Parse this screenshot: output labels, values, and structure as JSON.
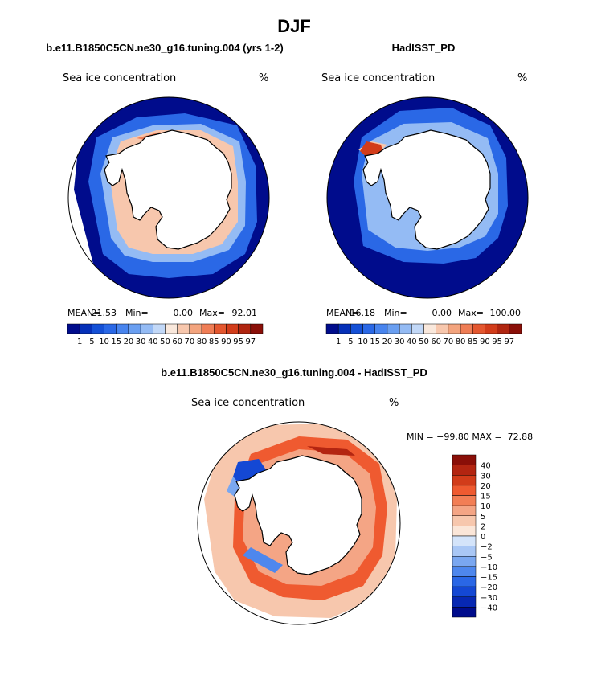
{
  "figure_title": "DJF",
  "panels": [
    {
      "title": "b.e11.B1850C5CN.ne30_g16.tuning.004 (yrs 1-2)",
      "field_label": "Sea ice concentration",
      "units": "%",
      "stats": {
        "mean_label": "MEAN=",
        "mean": "21.53",
        "min_label": "Min=",
        "min": "0.00",
        "max_label": "Max=",
        "max": "92.01"
      }
    },
    {
      "title": "HadISST_PD",
      "field_label": "Sea ice concentration",
      "units": "%",
      "stats": {
        "mean_label": "MEAN=",
        "mean": "16.18",
        "min_label": "Min=",
        "min": "0.00",
        "max_label": "Max=",
        "max": "100.00"
      }
    },
    {
      "title": "b.e11.B1850C5CN.ne30_g16.tuning.004 - HadISST_PD",
      "field_label": "Sea ice concentration",
      "units": "%",
      "minmax_text": "MIN = −99.80 MAX =  72.88"
    }
  ],
  "abs_colorbar": {
    "colors": [
      "#000c8c",
      "#0530b8",
      "#1450d6",
      "#2a68e6",
      "#4884ee",
      "#6a9ff1",
      "#94bbf4",
      "#c2d8f7",
      "#f9e8dc",
      "#f7c7ad",
      "#f3a47e",
      "#ef7d55",
      "#e4572f",
      "#d23c1a",
      "#b02510",
      "#8a0f08"
    ],
    "tick_labels": [
      "1",
      "5",
      "10",
      "15",
      "20",
      "30",
      "40",
      "50",
      "60",
      "70",
      "80",
      "85",
      "90",
      "95",
      "97"
    ]
  },
  "diff_colorbar": {
    "colors_top_to_bottom": [
      "#8a0f08",
      "#b32511",
      "#d23c1a",
      "#ef5a30",
      "#f27e55",
      "#f4a585",
      "#f7c7ad",
      "#fbe6d8",
      "#d4e4fa",
      "#a9c7f5",
      "#7aa7f0",
      "#4e87ed",
      "#2a67e6",
      "#1448d4",
      "#0728b3",
      "#000c8c"
    ],
    "tick_labels_top_to_bottom": [
      "40",
      "30",
      "20",
      "15",
      "10",
      "5",
      "2",
      "0",
      "−2",
      "−5",
      "−10",
      "−15",
      "−20",
      "−30",
      "−40"
    ]
  },
  "chart_data": [
    {
      "type": "heatmap",
      "projection": "south polar stereographic",
      "title": "b.e11.B1850C5CN.ne30_g16.tuning.004 (yrs 1-2)",
      "variable": "Sea ice concentration",
      "units": "%",
      "mean": 21.53,
      "min": 0.0,
      "max": 92.01,
      "contour_levels": [
        1,
        5,
        10,
        15,
        20,
        30,
        40,
        50,
        60,
        70,
        80,
        85,
        90,
        95,
        97
      ]
    },
    {
      "type": "heatmap",
      "projection": "south polar stereographic",
      "title": "HadISST_PD",
      "variable": "Sea ice concentration",
      "units": "%",
      "mean": 16.18,
      "min": 0.0,
      "max": 100.0,
      "contour_levels": [
        1,
        5,
        10,
        15,
        20,
        30,
        40,
        50,
        60,
        70,
        80,
        85,
        90,
        95,
        97
      ]
    },
    {
      "type": "heatmap",
      "projection": "south polar stereographic",
      "title": "b.e11.B1850C5CN.ne30_g16.tuning.004 - HadISST_PD",
      "variable": "Sea ice concentration",
      "units": "%",
      "min": -99.8,
      "max": 72.88,
      "contour_levels": [
        -40,
        -30,
        -20,
        -15,
        -10,
        -5,
        -2,
        0,
        2,
        5,
        10,
        15,
        20,
        30,
        40
      ]
    }
  ]
}
